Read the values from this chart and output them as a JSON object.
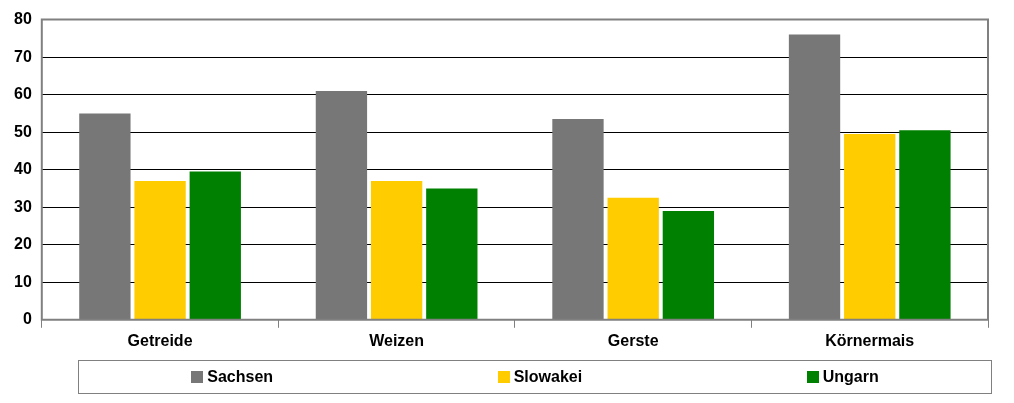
{
  "chart_data": {
    "type": "bar",
    "categories": [
      "Getreide",
      "Weizen",
      "Gerste",
      "Körnermais"
    ],
    "series": [
      {
        "name": "Sachsen",
        "color": "#777777",
        "values": [
          55,
          61,
          53.5,
          76
        ]
      },
      {
        "name": "Slowakei",
        "color": "#ffcc00",
        "values": [
          37,
          37,
          32.5,
          49.5
        ]
      },
      {
        "name": "Ungarn",
        "color": "#008000",
        "values": [
          39.5,
          35,
          29,
          50.5
        ]
      }
    ],
    "ylim": [
      0,
      80
    ],
    "yticks": [
      0,
      10,
      20,
      30,
      40,
      50,
      60,
      70,
      80
    ],
    "grid": "y",
    "legend": "bottom"
  }
}
